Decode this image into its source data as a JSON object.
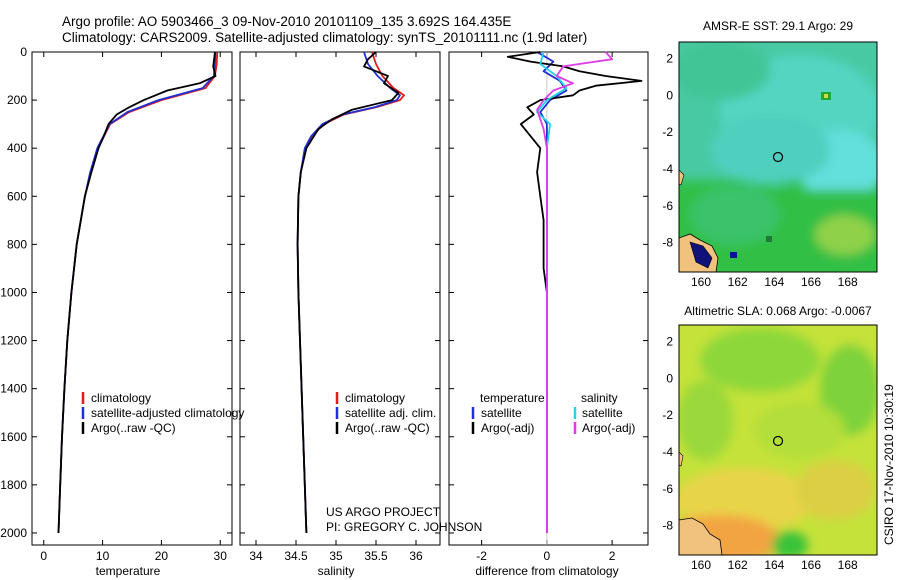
{
  "header": {
    "line1": "Argo profile: AO 5903466_3 09-Nov-2010 20101109_135 3.692S 164.435E",
    "line2": "Climatology: CARS2009. Satellite-adjusted climatology: synTS_20101111.nc (1.9d later)"
  },
  "credits": {
    "project": "US ARGO PROJECT",
    "pi": "PI: GREGORY C. JOHNSON",
    "stamp": "CSIRO 17-Nov-2010 10:30:19"
  },
  "colors": {
    "climatology": "#e41a1c",
    "satellite": "#1f2fd6",
    "argo": "#000000",
    "satellite_salinity": "#22d4e6",
    "argo_salinity": "#e03ce6"
  },
  "chart_data": [
    {
      "id": "temperature",
      "type": "line",
      "xlabel": "temperature",
      "ylabel": "",
      "xlim": [
        -2,
        32
      ],
      "ylim": [
        2050,
        0
      ],
      "xticks": [
        "0",
        "10",
        "20",
        "30"
      ],
      "xtick_values": [
        0,
        10,
        20,
        30
      ],
      "yticks": [
        "0",
        "200",
        "400",
        "600",
        "800",
        "1000",
        "1200",
        "1400",
        "1600",
        "1800",
        "2000"
      ],
      "ytick_values": [
        0,
        200,
        400,
        600,
        800,
        1000,
        1200,
        1400,
        1600,
        1800,
        2000
      ],
      "legend": [
        "climatology",
        "satellite-adjusted climatology",
        "Argo(..raw -QC)"
      ],
      "series": [
        {
          "name": "climatology",
          "color_key": "climatology",
          "depth": [
            0,
            50,
            100,
            150,
            200,
            250,
            300,
            400,
            500,
            600,
            800,
            1000,
            1200,
            1400,
            1600,
            1800,
            2000
          ],
          "values": [
            29.5,
            29.4,
            29.1,
            27.5,
            20.0,
            14.5,
            11.3,
            9.2,
            8.0,
            7.0,
            5.6,
            4.7,
            4.0,
            3.5,
            3.1,
            2.8,
            2.5
          ]
        },
        {
          "name": "satellite-adjusted climatology",
          "color_key": "satellite",
          "depth": [
            0,
            50,
            100,
            150,
            200,
            250,
            300,
            400,
            500,
            600,
            800,
            1000,
            1200,
            1400,
            1600,
            1800,
            2000
          ],
          "values": [
            29.2,
            29.1,
            28.9,
            27.0,
            19.5,
            14.2,
            11.2,
            9.1,
            7.9,
            7.0,
            5.6,
            4.7,
            4.0,
            3.5,
            3.1,
            2.8,
            2.5
          ]
        },
        {
          "name": "Argo(..raw -QC)",
          "color_key": "argo",
          "depth": [
            0,
            20,
            60,
            100,
            130,
            160,
            200,
            230,
            260,
            300,
            350,
            400,
            500,
            600,
            800,
            1000,
            1200,
            1400,
            1600,
            1800,
            2000
          ],
          "values": [
            29.1,
            29.0,
            28.8,
            29.2,
            26.5,
            21.0,
            17.0,
            14.5,
            12.4,
            11.0,
            10.2,
            9.3,
            8.1,
            7.0,
            5.6,
            4.7,
            4.0,
            3.5,
            3.1,
            2.8,
            2.5
          ]
        }
      ]
    },
    {
      "id": "salinity",
      "type": "line",
      "xlabel": "salinity",
      "ylabel": "",
      "xlim": [
        33.8,
        36.3
      ],
      "ylim": [
        2050,
        0
      ],
      "xticks": [
        "34",
        "34.5",
        "35",
        "35.5",
        "36"
      ],
      "xtick_values": [
        34,
        34.5,
        35,
        35.5,
        36
      ],
      "legend": [
        "climatology",
        "satellite adj. clim.",
        "Argo(..raw -QC)"
      ],
      "series": [
        {
          "name": "climatology",
          "color_key": "climatology",
          "depth": [
            0,
            50,
            100,
            150,
            180,
            200,
            230,
            260,
            300,
            350,
            400,
            500,
            600,
            800,
            1000,
            1200,
            1400,
            1600,
            1800,
            2000
          ],
          "values": [
            35.45,
            35.5,
            35.58,
            35.72,
            35.85,
            35.8,
            35.5,
            35.1,
            34.85,
            34.7,
            34.62,
            34.56,
            34.53,
            34.52,
            34.53,
            34.55,
            34.57,
            34.59,
            34.61,
            34.63
          ]
        },
        {
          "name": "satellite adj. clim.",
          "color_key": "satellite",
          "depth": [
            0,
            50,
            100,
            150,
            180,
            200,
            230,
            260,
            300,
            350,
            400,
            500,
            600,
            800,
            1000,
            1200,
            1400,
            1600,
            1800,
            2000
          ],
          "values": [
            35.35,
            35.4,
            35.52,
            35.68,
            35.8,
            35.76,
            35.48,
            35.08,
            34.83,
            34.69,
            34.61,
            34.56,
            34.53,
            34.52,
            34.53,
            34.55,
            34.57,
            34.59,
            34.61,
            34.63
          ]
        },
        {
          "name": "Argo(..raw -QC)",
          "color_key": "argo",
          "depth": [
            0,
            30,
            60,
            100,
            130,
            170,
            200,
            240,
            280,
            320,
            400,
            500,
            600,
            800,
            1000,
            1200,
            1400,
            1600,
            1800,
            2000
          ],
          "values": [
            35.5,
            35.4,
            35.35,
            35.65,
            35.6,
            35.78,
            35.7,
            35.2,
            34.95,
            34.78,
            34.63,
            34.56,
            34.53,
            34.52,
            34.53,
            34.55,
            34.57,
            34.59,
            34.61,
            34.63
          ]
        }
      ]
    },
    {
      "id": "difference",
      "type": "line",
      "xlabel": "difference from climatology",
      "ylabel": "",
      "xlim": [
        -3,
        3.1
      ],
      "ylim": [
        2050,
        0
      ],
      "xticks": [
        "-2",
        "0",
        "2"
      ],
      "xtick_values": [
        -2,
        0,
        2
      ],
      "legend_temperature_title": "temperature",
      "legend_salinity_title": "salinity",
      "legend": [
        "satellite",
        "Argo(-adj)",
        "satellite",
        "Argo(-adj)"
      ],
      "series": [
        {
          "name": "temperature satellite",
          "color_key": "satellite",
          "depth": [
            0,
            40,
            80,
            120,
            160,
            200,
            250,
            300,
            400,
            600,
            1000,
            2000
          ],
          "values": [
            -0.3,
            0.2,
            -0.1,
            0.4,
            0.6,
            0.1,
            -0.2,
            0.0,
            0.0,
            0.0,
            0.0,
            0.0
          ]
        },
        {
          "name": "temperature Argo(-adj)",
          "color_key": "argo",
          "depth": [
            0,
            20,
            40,
            60,
            80,
            100,
            120,
            140,
            160,
            180,
            200,
            230,
            260,
            300,
            350,
            400,
            500,
            600,
            700,
            800,
            900,
            1000,
            1200,
            1500,
            1800,
            2000
          ],
          "values": [
            -0.2,
            -1.2,
            -0.5,
            0.5,
            1.0,
            1.8,
            2.9,
            1.5,
            1.0,
            0.8,
            -0.2,
            -0.6,
            -0.4,
            -0.8,
            -0.5,
            -0.2,
            -0.3,
            -0.2,
            -0.1,
            -0.1,
            -0.1,
            0.0,
            0.0,
            0.0,
            0.0,
            0.0
          ]
        },
        {
          "name": "salinity satellite",
          "color_key": "satellite_salinity",
          "depth": [
            0,
            50,
            100,
            150,
            200,
            250,
            300,
            400,
            600,
            1000,
            2000
          ],
          "values": [
            -0.1,
            -0.2,
            0.3,
            0.6,
            0.0,
            -0.3,
            0.1,
            0.0,
            0.0,
            0.0,
            0.0
          ]
        },
        {
          "name": "salinity Argo(-adj)",
          "color_key": "argo_salinity",
          "depth": [
            0,
            30,
            60,
            100,
            130,
            160,
            200,
            240,
            280,
            320,
            400,
            500,
            600,
            800,
            1000,
            2000
          ],
          "values": [
            1.8,
            2.0,
            0.5,
            0.3,
            0.8,
            0.2,
            -0.1,
            -0.3,
            -0.2,
            -0.1,
            0.0,
            0.0,
            0.0,
            0.0,
            0.0,
            0.0
          ]
        }
      ]
    },
    {
      "id": "sst-map",
      "type": "heatmap",
      "title": "AMSR-E SST: 29.1 Argo: 29",
      "xticks": [
        "160",
        "162",
        "164",
        "166",
        "168"
      ],
      "xtick_values": [
        160,
        162,
        164,
        166,
        168
      ],
      "yticks": [
        "2",
        "0",
        "-2",
        "-4",
        "-6",
        "-8"
      ],
      "ytick_values": [
        2,
        0,
        -2,
        -4,
        -6,
        -8
      ],
      "xlim": [
        158.8,
        169.6
      ],
      "ylim": [
        -9.6,
        2.9
      ],
      "float_lon": 164.435,
      "float_lat": -3.692
    },
    {
      "id": "sla-map",
      "type": "heatmap",
      "title": "Altimetric SLA: 0.068 Argo: -0.0067",
      "xticks": [
        "160",
        "162",
        "164",
        "166",
        "168"
      ],
      "xtick_values": [
        160,
        162,
        164,
        166,
        168
      ],
      "yticks": [
        "2",
        "0",
        "-2",
        "-4",
        "-6",
        "-8"
      ],
      "ytick_values": [
        2,
        0,
        -2,
        -4,
        -6,
        -8
      ],
      "xlim": [
        158.8,
        169.6
      ],
      "ylim": [
        -9.6,
        2.9
      ],
      "float_lon": 164.435,
      "float_lat": -3.692
    }
  ]
}
